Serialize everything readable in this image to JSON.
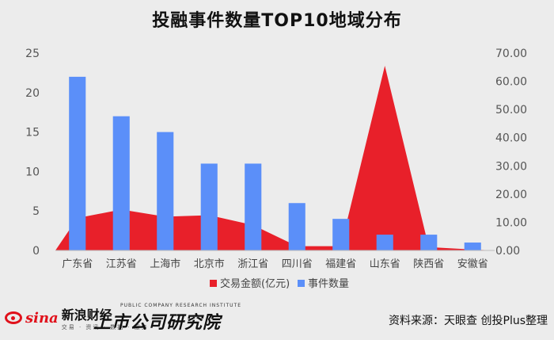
{
  "title": "投融事件数量TOP10地域分布",
  "chart_data": {
    "type": "bar+area",
    "categories": [
      "广东省",
      "江苏省",
      "上海市",
      "北京市",
      "浙江省",
      "四川省",
      "福建省",
      "山东省",
      "陕西省",
      "安徽省"
    ],
    "series": [
      {
        "name": "事件数量",
        "type": "bar",
        "axis": "left",
        "color": "#5b8ff9",
        "values": [
          22,
          17,
          15,
          11,
          11,
          6,
          4,
          2,
          2,
          1
        ]
      },
      {
        "name": "交易金额(亿元)",
        "type": "area",
        "axis": "right",
        "color": "#e8202a",
        "values": [
          11.5,
          14.5,
          12,
          12.5,
          9,
          1.5,
          1.5,
          65.5,
          1.2,
          0.3
        ]
      }
    ],
    "left_axis": {
      "ylim": [
        0,
        25
      ],
      "ticks": [
        "0",
        "5",
        "10",
        "15",
        "20",
        "25"
      ]
    },
    "right_axis": {
      "ylim": [
        0,
        70
      ],
      "ticks": [
        "0.00",
        "10.00",
        "20.00",
        "30.00",
        "40.00",
        "50.00",
        "60.00",
        "70.00"
      ]
    },
    "legend": {
      "position": "bottom",
      "items": [
        "交易金额(亿元)",
        "事件数量"
      ]
    },
    "grid": false
  },
  "footer": {
    "brand_left": {
      "logo_word": "sina",
      "name": "新浪财经",
      "sub": "交易 · 资讯 · 数据 · 服务"
    },
    "brand_mid": {
      "top": "PUBLIC COMPANY RESEARCH INSTITUTE",
      "name": "上市公司研究院"
    },
    "source": "资料来源：天眼查 创投Plus整理"
  }
}
